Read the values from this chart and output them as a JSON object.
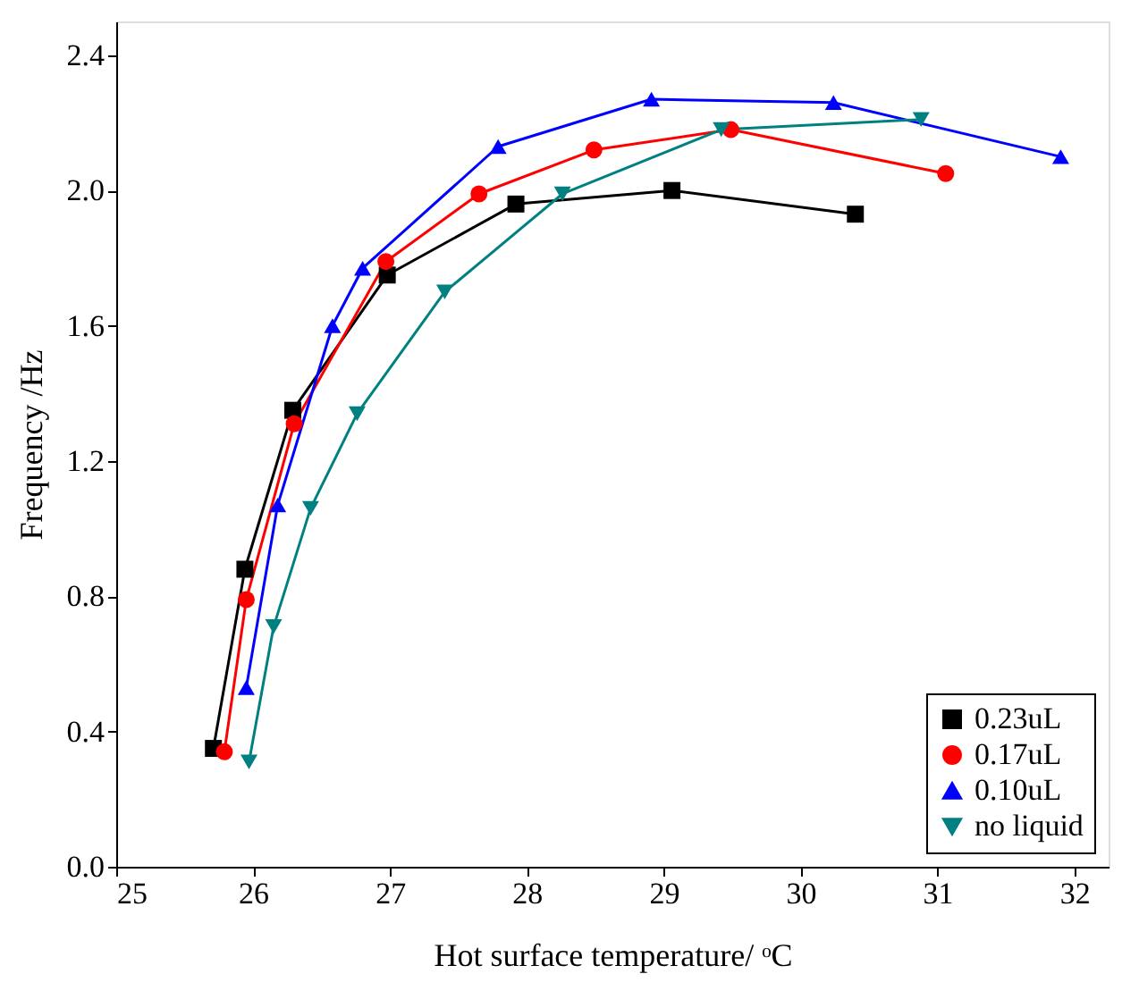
{
  "chart_data": {
    "type": "line",
    "xlabel": "Hot surface temperature/ ᵒC",
    "ylabel": "Frequency /Hz",
    "xlim": [
      25,
      32.25
    ],
    "xticks": [
      25,
      26,
      27,
      28,
      29,
      30,
      31,
      32
    ],
    "ylim": [
      0,
      2.5
    ],
    "yticks": [
      {
        "value": 0,
        "label": "0.0"
      },
      {
        "value": 0.4,
        "label": "0.4"
      },
      {
        "value": 0.8,
        "label": "0.8"
      },
      {
        "value": 1.2,
        "label": "1.2"
      },
      {
        "value": 1.6,
        "label": "1.6"
      },
      {
        "value": 2.0,
        "label": "2.0"
      },
      {
        "value": 2.4,
        "label": "2.4"
      }
    ],
    "grid": false,
    "legend": "bottom right",
    "line_style": "solid",
    "series": [
      {
        "name": "0.23uL",
        "color": "#000000",
        "marker": "square",
        "x": [
          25.71,
          25.94,
          26.29,
          26.98,
          27.92,
          29.06,
          30.4
        ],
        "values": [
          0.35,
          0.88,
          1.35,
          1.75,
          1.96,
          2.0,
          1.93
        ]
      },
      {
        "name": "0.17uL",
        "color": "#ff0000",
        "marker": "circle",
        "x": [
          25.79,
          25.95,
          26.3,
          26.97,
          27.65,
          28.49,
          29.49,
          31.06
        ],
        "values": [
          0.34,
          0.79,
          1.31,
          1.79,
          1.99,
          2.12,
          2.18,
          2.05
        ]
      },
      {
        "name": "0.10uL",
        "color": "#0000ff",
        "marker": "triangle",
        "x": [
          25.95,
          26.18,
          26.58,
          26.8,
          27.79,
          28.91,
          30.24,
          31.9
        ],
        "values": [
          0.53,
          1.07,
          1.6,
          1.77,
          2.13,
          2.27,
          2.26,
          2.1
        ]
      },
      {
        "name": "no liquid",
        "color": "#008080",
        "marker": "triangle-down",
        "x": [
          25.97,
          26.15,
          26.42,
          26.76,
          27.4,
          28.26,
          29.42,
          30.88
        ],
        "values": [
          0.31,
          0.71,
          1.06,
          1.34,
          1.7,
          1.99,
          2.18,
          2.21
        ]
      }
    ]
  }
}
